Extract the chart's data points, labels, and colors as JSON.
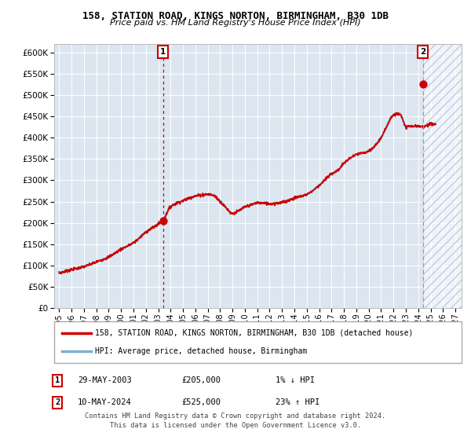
{
  "title1": "158, STATION ROAD, KINGS NORTON, BIRMINGHAM, B30 1DB",
  "title2": "Price paid vs. HM Land Registry's House Price Index (HPI)",
  "legend_label1": "158, STATION ROAD, KINGS NORTON, BIRMINGHAM, B30 1DB (detached house)",
  "legend_label2": "HPI: Average price, detached house, Birmingham",
  "annotation1_date": "29-MAY-2003",
  "annotation1_price": "£205,000",
  "annotation1_hpi": "1% ↓ HPI",
  "annotation2_date": "10-MAY-2024",
  "annotation2_price": "£525,000",
  "annotation2_hpi": "23% ↑ HPI",
  "footer1": "Contains HM Land Registry data © Crown copyright and database right 2024.",
  "footer2": "This data is licensed under the Open Government Licence v3.0.",
  "hpi_color": "#7bafd4",
  "price_color": "#cc0000",
  "marker_color": "#cc0000",
  "annotation_box_color": "#cc0000",
  "vline1_color": "#cc0000",
  "vline2_color": "#999999",
  "bg_color": "#dce6f1",
  "future_hatch_color": "#b0c4de",
  "ylim": [
    0,
    620000
  ],
  "yticks": [
    0,
    50000,
    100000,
    150000,
    200000,
    250000,
    300000,
    350000,
    400000,
    450000,
    500000,
    550000,
    600000
  ],
  "xlim_start": 1994.6,
  "xlim_end": 2027.5,
  "xticks": [
    1995,
    1996,
    1997,
    1998,
    1999,
    2000,
    2001,
    2002,
    2003,
    2004,
    2005,
    2006,
    2007,
    2008,
    2009,
    2010,
    2011,
    2012,
    2013,
    2014,
    2015,
    2016,
    2017,
    2018,
    2019,
    2020,
    2021,
    2022,
    2023,
    2024,
    2025,
    2026,
    2027
  ],
  "sale1_x": 2003.38,
  "sale1_y": 205000,
  "sale2_x": 2024.37,
  "sale2_y": 525000,
  "future_start": 2024.37,
  "key_years": [
    1995,
    1996,
    1997,
    1998,
    1999,
    2000,
    2001,
    2002,
    2003.4,
    2004,
    2005,
    2006,
    2007,
    2007.5,
    2008,
    2008.5,
    2009,
    2009.5,
    2010,
    2010.5,
    2011,
    2012,
    2013,
    2014,
    2015,
    2016,
    2017,
    2017.5,
    2018,
    2019,
    2020,
    2021,
    2022,
    2022.5,
    2023,
    2023.5,
    2024.37,
    2025,
    2025.5
  ],
  "key_vals": [
    82000,
    90000,
    97000,
    108000,
    120000,
    138000,
    153000,
    178000,
    207000,
    238000,
    252000,
    263000,
    267000,
    264000,
    250000,
    235000,
    222000,
    228000,
    237000,
    242000,
    247000,
    245000,
    248000,
    258000,
    267000,
    288000,
    315000,
    323000,
    340000,
    360000,
    368000,
    400000,
    453000,
    457000,
    426000,
    427000,
    426000,
    432000,
    432000
  ]
}
